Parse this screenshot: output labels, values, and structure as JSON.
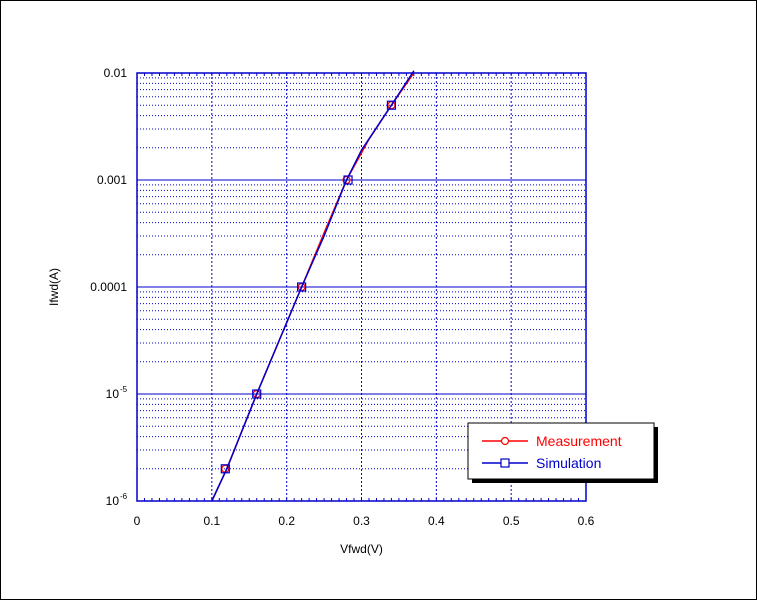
{
  "chart_data": {
    "type": "line",
    "title": "",
    "xlabel": "Vfwd(V)",
    "ylabel": "Ifwd(A)",
    "xlim": [
      0,
      0.6
    ],
    "ylim": [
      1e-06,
      0.01
    ],
    "y_scale": "log",
    "grid": true,
    "legend_placement": "bottom-right",
    "x_ticks": [
      "0",
      "0.1",
      "0.2",
      "0.3",
      "0.4",
      "0.5",
      "0.6"
    ],
    "x_tick_values": [
      0,
      0.1,
      0.2,
      0.3,
      0.4,
      0.5,
      0.6
    ],
    "y_ticks": [
      {
        "value": 0.01,
        "label": "0.01"
      },
      {
        "value": 0.001,
        "label": "0.001"
      },
      {
        "value": 0.0001,
        "label": "0.0001"
      },
      {
        "value": 1e-05,
        "base": "10",
        "exp": "-5"
      },
      {
        "value": 1e-06,
        "base": "10",
        "exp": "-6"
      }
    ],
    "series": [
      {
        "name": "Measurement",
        "color": "#ff0000",
        "marker": "circle",
        "curve": [
          [
            0.1,
            1e-06
          ],
          [
            0.12,
            2e-06
          ],
          [
            0.16,
            1e-05
          ],
          [
            0.22,
            0.0001
          ],
          [
            0.25,
            0.00032
          ],
          [
            0.28,
            0.001
          ],
          [
            0.31,
            0.0024
          ],
          [
            0.34,
            0.005
          ],
          [
            0.37,
            0.01
          ]
        ],
        "markers": [
          [
            0.118,
            2e-06
          ],
          [
            0.16,
            1e-05
          ],
          [
            0.22,
            0.0001
          ],
          [
            0.28,
            0.001
          ],
          [
            0.34,
            0.005
          ]
        ]
      },
      {
        "name": "Simulation",
        "color": "#0000cc",
        "marker": "square",
        "curve": [
          [
            0.1,
            1e-06
          ],
          [
            0.12,
            2e-06
          ],
          [
            0.16,
            1e-05
          ],
          [
            0.22,
            0.0001
          ],
          [
            0.25,
            0.0003
          ],
          [
            0.28,
            0.001
          ],
          [
            0.3,
            0.0019
          ],
          [
            0.34,
            0.005
          ],
          [
            0.37,
            0.0105
          ]
        ],
        "markers": [
          [
            0.118,
            2e-06
          ],
          [
            0.16,
            1e-05
          ],
          [
            0.22,
            0.0001
          ],
          [
            0.282,
            0.001
          ],
          [
            0.34,
            0.005
          ]
        ]
      }
    ]
  },
  "colors": {
    "axis": "#0000cc",
    "grid": "#0000cc",
    "measurement": "#ff0000",
    "simulation": "#0000cc"
  }
}
